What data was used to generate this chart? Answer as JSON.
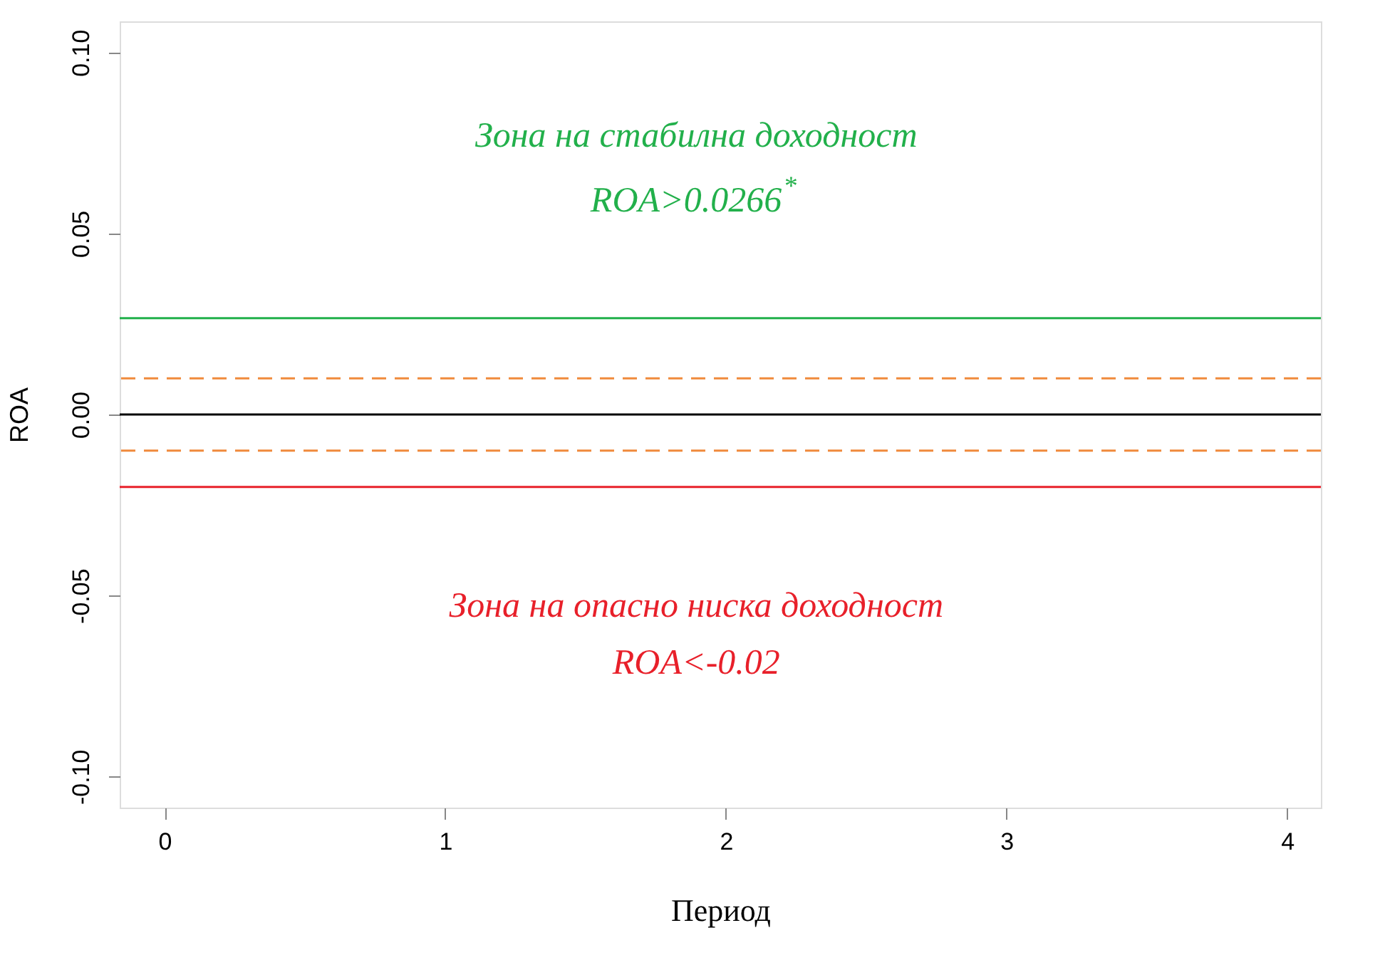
{
  "chart_data": {
    "type": "line",
    "xlabel": "Период",
    "ylabel": "ROA",
    "xlim": [
      -0.16,
      4.12
    ],
    "ylim": [
      -0.1086,
      0.1086
    ],
    "xticks": [
      0,
      1,
      2,
      3,
      4
    ],
    "yticks": [
      {
        "value": -0.1,
        "label": "-0.10"
      },
      {
        "value": -0.05,
        "label": "-0.05"
      },
      {
        "value": 0,
        "label": "0.00"
      },
      {
        "value": 0.05,
        "label": "0.05"
      },
      {
        "value": 0.1,
        "label": "0.10"
      }
    ],
    "grid": false,
    "ref_lines": [
      {
        "axis": "y",
        "value": 0.0266,
        "color": "#22b04b",
        "line_style": "solid"
      },
      {
        "axis": "y",
        "value": 0.01,
        "color": "#f08a3c",
        "line_style": "dashed"
      },
      {
        "axis": "y",
        "value": 0,
        "color": "#000000",
        "line_style": "solid"
      },
      {
        "axis": "y",
        "value": -0.01,
        "color": "#f08a3c",
        "line_style": "dashed"
      },
      {
        "axis": "y",
        "value": -0.02,
        "color": "#e8202a",
        "line_style": "solid"
      }
    ],
    "annotations": [
      "Зона на стабилна доходност",
      "ROA>0.0266$^{*}$",
      "Зона на опасно ниска доходност",
      "ROA<-0.02"
    ]
  }
}
